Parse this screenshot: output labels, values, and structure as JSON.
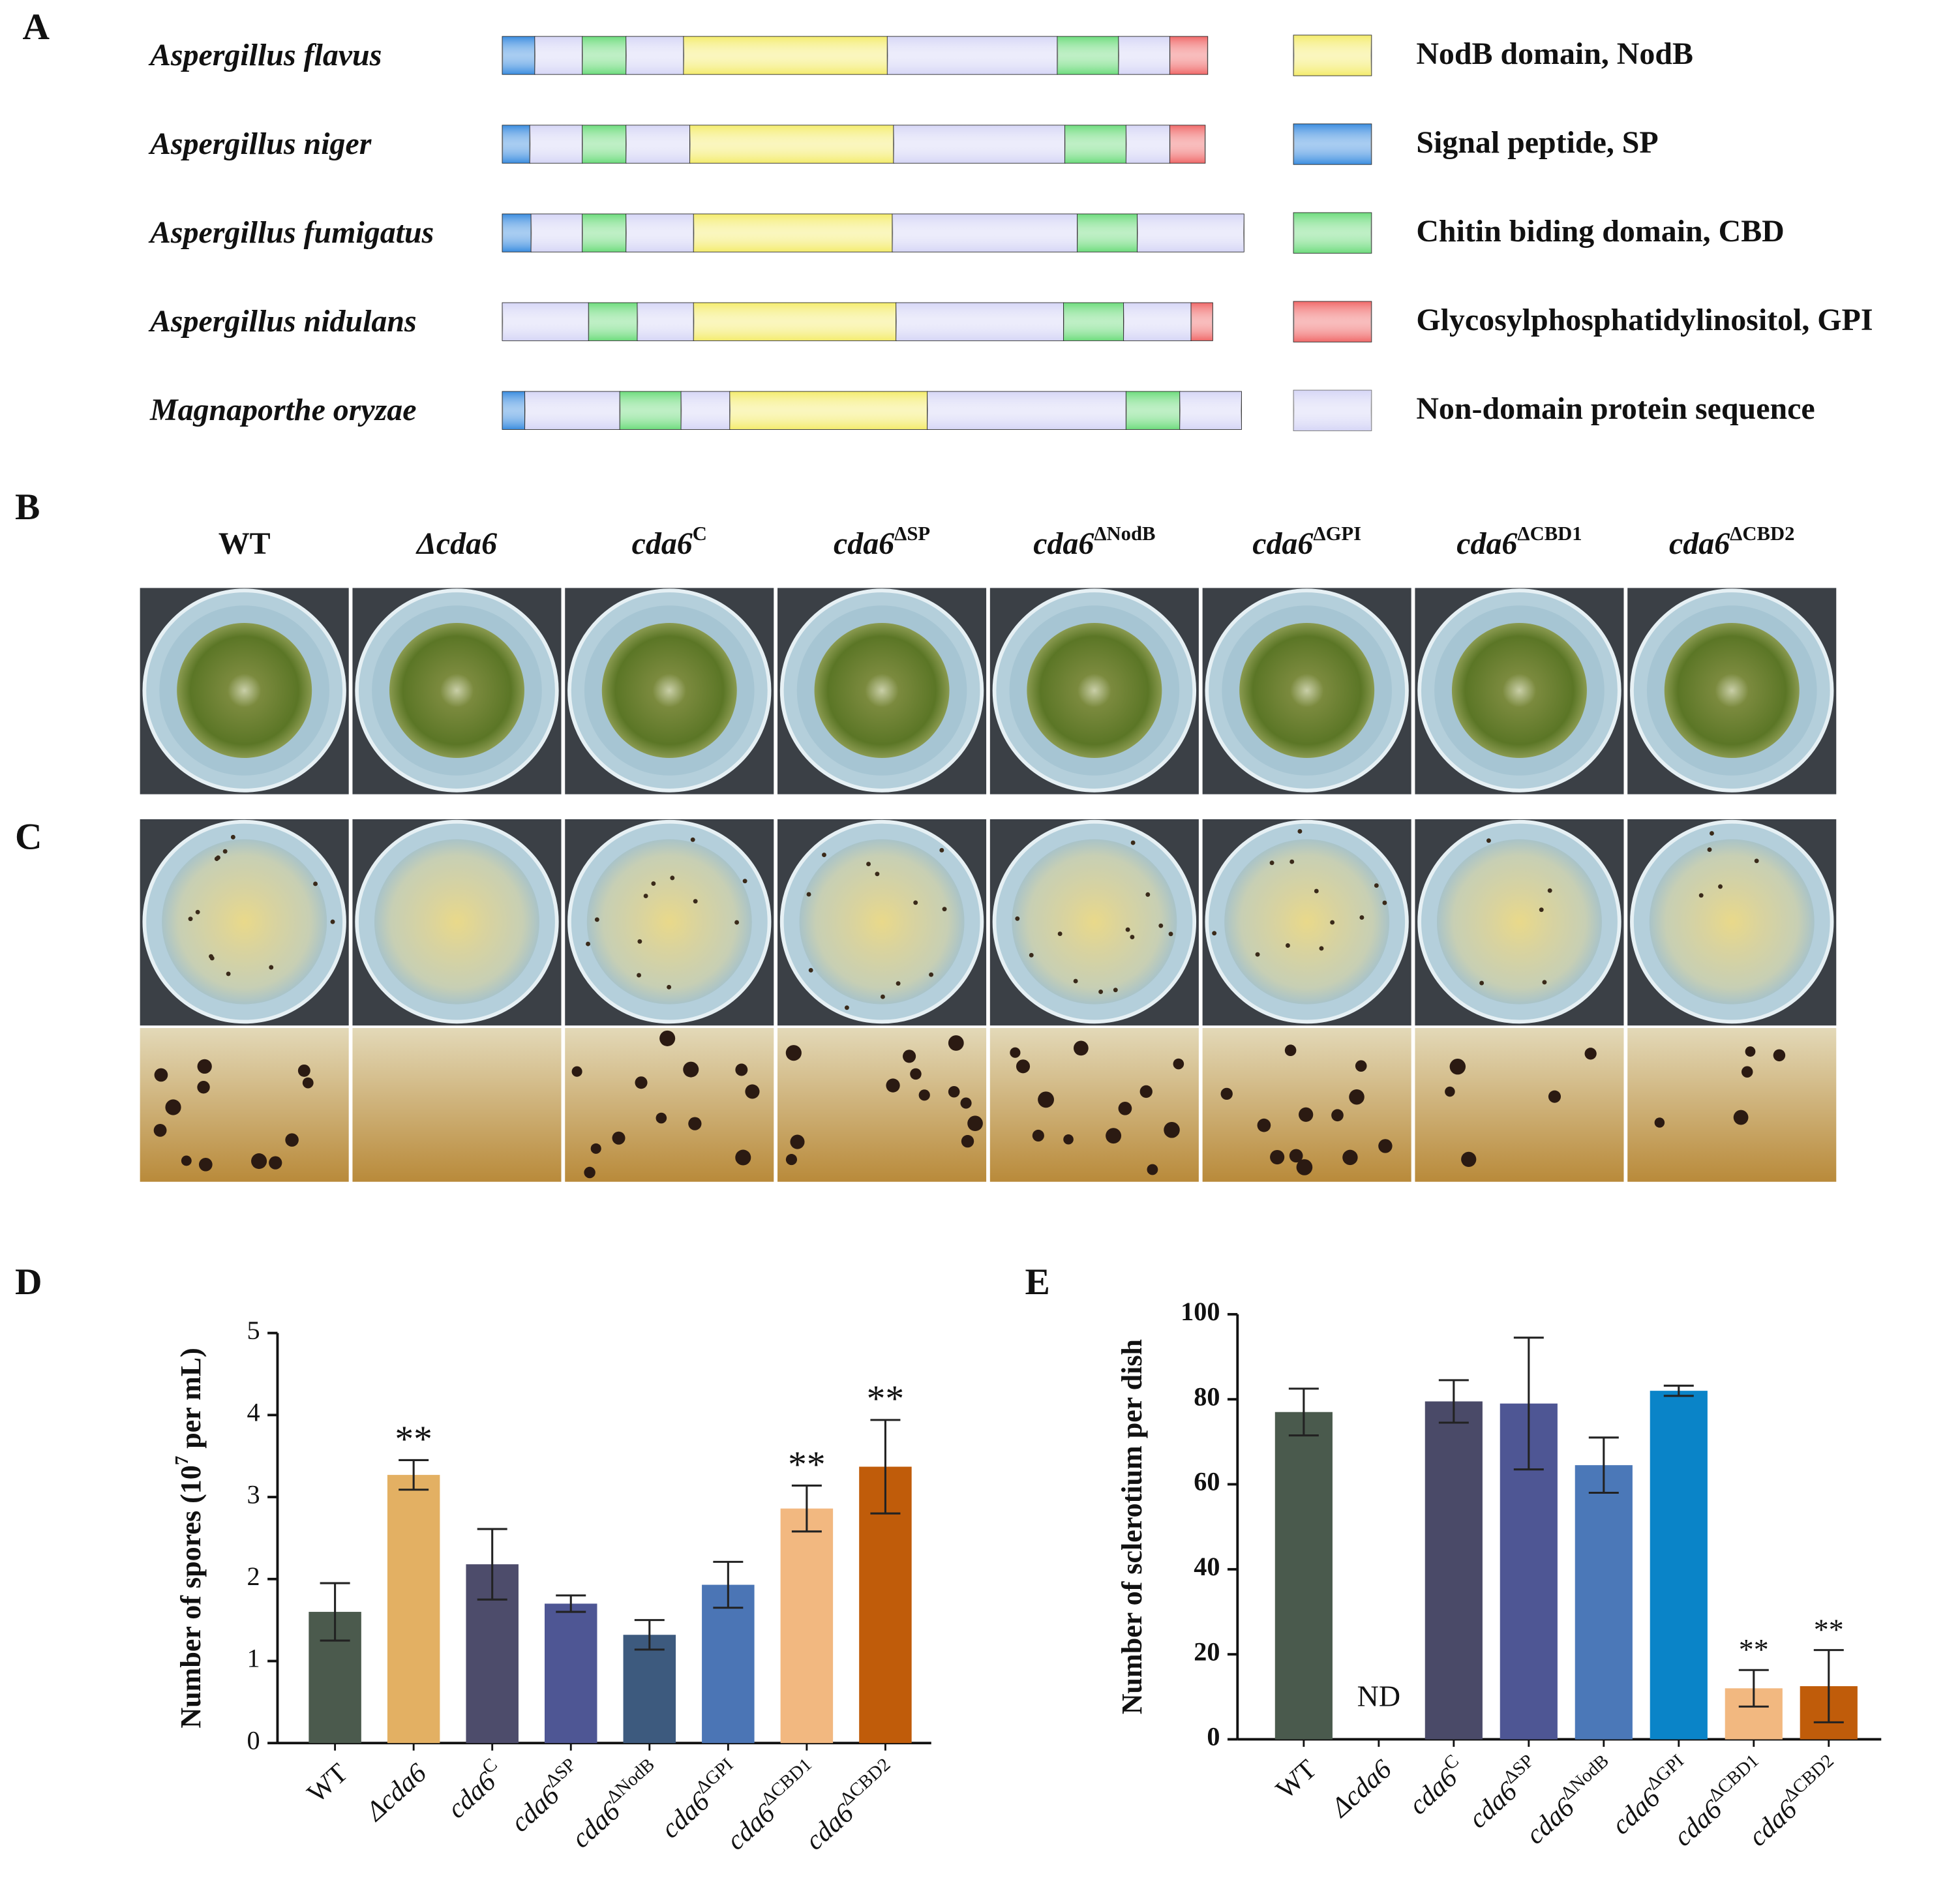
{
  "panel_labels": [
    "A",
    "B",
    "C",
    "D",
    "E"
  ],
  "domain_panel": {
    "legend": [
      {
        "label": "NodB domain, NodB",
        "color": "#f4ec6e"
      },
      {
        "label": "Signal peptide, SP",
        "color": "#3d8ee0"
      },
      {
        "label": "Chitin biding domain, CBD",
        "color": "#6fdc7e"
      },
      {
        "label": "Glycosylphosphatidylinositol, GPI",
        "color": "#f06b6b"
      },
      {
        "label": "Non-domain protein sequence",
        "color": "#d6d6f6"
      }
    ],
    "proteins": [
      {
        "species": "Aspergillus flavus",
        "segments": [
          {
            "domain": 1,
            "start": 0,
            "end": 26
          },
          {
            "domain": 4,
            "start": 26,
            "end": 64
          },
          {
            "domain": 2,
            "start": 64,
            "end": 99
          },
          {
            "domain": 4,
            "start": 99,
            "end": 145
          },
          {
            "domain": 0,
            "start": 145,
            "end": 308
          },
          {
            "domain": 4,
            "start": 308,
            "end": 444
          },
          {
            "domain": 2,
            "start": 444,
            "end": 493
          },
          {
            "domain": 4,
            "start": 493,
            "end": 534
          },
          {
            "domain": 3,
            "start": 534,
            "end": 564
          }
        ]
      },
      {
        "species": "Aspergillus niger",
        "segments": [
          {
            "domain": 1,
            "start": 0,
            "end": 22
          },
          {
            "domain": 4,
            "start": 22,
            "end": 64
          },
          {
            "domain": 2,
            "start": 64,
            "end": 99
          },
          {
            "domain": 4,
            "start": 99,
            "end": 150
          },
          {
            "domain": 0,
            "start": 150,
            "end": 313
          },
          {
            "domain": 4,
            "start": 313,
            "end": 450
          },
          {
            "domain": 2,
            "start": 450,
            "end": 499
          },
          {
            "domain": 4,
            "start": 499,
            "end": 534
          },
          {
            "domain": 3,
            "start": 534,
            "end": 562
          }
        ]
      },
      {
        "species": "Aspergillus fumigatus",
        "segments": [
          {
            "domain": 1,
            "start": 0,
            "end": 23
          },
          {
            "domain": 4,
            "start": 23,
            "end": 64
          },
          {
            "domain": 2,
            "start": 64,
            "end": 99
          },
          {
            "domain": 4,
            "start": 99,
            "end": 153
          },
          {
            "domain": 0,
            "start": 153,
            "end": 312
          },
          {
            "domain": 4,
            "start": 312,
            "end": 460
          },
          {
            "domain": 2,
            "start": 460,
            "end": 508
          },
          {
            "domain": 4,
            "start": 508,
            "end": 593
          }
        ]
      },
      {
        "species": "Aspergillus nidulans",
        "segments": [
          {
            "domain": 4,
            "start": 0,
            "end": 69
          },
          {
            "domain": 2,
            "start": 69,
            "end": 108
          },
          {
            "domain": 4,
            "start": 108,
            "end": 153
          },
          {
            "domain": 0,
            "start": 153,
            "end": 315
          },
          {
            "domain": 4,
            "start": 315,
            "end": 449
          },
          {
            "domain": 2,
            "start": 449,
            "end": 497
          },
          {
            "domain": 4,
            "start": 497,
            "end": 551
          },
          {
            "domain": 3,
            "start": 551,
            "end": 568
          }
        ]
      },
      {
        "species": "Magnaporthe oryzae",
        "segments": [
          {
            "domain": 1,
            "start": 0,
            "end": 18
          },
          {
            "domain": 4,
            "start": 18,
            "end": 94
          },
          {
            "domain": 2,
            "start": 94,
            "end": 143
          },
          {
            "domain": 4,
            "start": 143,
            "end": 182
          },
          {
            "domain": 0,
            "start": 182,
            "end": 340
          },
          {
            "domain": 4,
            "start": 340,
            "end": 499
          },
          {
            "domain": 2,
            "start": 499,
            "end": 542
          },
          {
            "domain": 4,
            "start": 542,
            "end": 591
          }
        ]
      }
    ]
  },
  "photo_panel": {
    "columns": [
      {
        "base": "WT",
        "italic": false
      },
      {
        "base": "Δcda6",
        "italic": true
      },
      {
        "base": "cda6",
        "sup": "C",
        "italic": true
      },
      {
        "base": "cda6",
        "sup": "ΔSP",
        "italic": true
      },
      {
        "base": "cda6",
        "sup": "ΔNodB",
        "italic": true
      },
      {
        "base": "cda6",
        "sup": "ΔGPI",
        "italic": true
      },
      {
        "base": "cda6",
        "sup": "ΔCBD1",
        "italic": true
      },
      {
        "base": "cda6",
        "sup": "ΔCBD2",
        "italic": true
      }
    ]
  },
  "chart_data": [
    {
      "type": "bar",
      "ylabel": {
        "before": "Number of  spores (10",
        "sup": "7",
        "after": " per mL)"
      },
      "categories": [
        {
          "base": "WT",
          "italic": false
        },
        {
          "base": "Δcda6",
          "italic": true
        },
        {
          "base": "cda6",
          "sup": "C",
          "italic": true
        },
        {
          "base": "cda6",
          "sup": "ΔSP",
          "italic": true
        },
        {
          "base": "cda6",
          "sup": "ΔNodB",
          "italic": true
        },
        {
          "base": "cda6",
          "sup": "ΔGPI",
          "italic": true
        },
        {
          "base": "cda6",
          "sup": "ΔCBD1",
          "italic": true
        },
        {
          "base": "cda6",
          "sup": "ΔCBD2",
          "italic": true
        }
      ],
      "values": [
        1.6,
        3.27,
        2.18,
        1.7,
        1.32,
        1.93,
        2.86,
        3.37
      ],
      "errors": [
        0.35,
        0.18,
        0.43,
        0.1,
        0.18,
        0.28,
        0.28,
        0.57
      ],
      "colors": [
        "#4b5a4d",
        "#e3b063",
        "#4d4c6b",
        "#4e5694",
        "#3d5a7e",
        "#4b75b5",
        "#f2b880",
        "#c05c0a"
      ],
      "significance": [
        {
          "index": 1,
          "label": "**"
        },
        {
          "index": 6,
          "label": "**"
        },
        {
          "index": 7,
          "label": "**"
        }
      ],
      "ylim": [
        0,
        5
      ],
      "yticks": [
        0,
        1,
        2,
        3,
        4,
        5
      ]
    },
    {
      "type": "bar",
      "ylabel": {
        "before": "Number of  sclerotium  per dish"
      },
      "categories": [
        {
          "base": "WT",
          "italic": false
        },
        {
          "base": "Δcda6",
          "italic": true
        },
        {
          "base": "cda6",
          "sup": "C",
          "italic": true
        },
        {
          "base": "cda6",
          "sup": "ΔSP",
          "italic": true
        },
        {
          "base": "cda6",
          "sup": "ΔNodB",
          "italic": true
        },
        {
          "base": "cda6",
          "sup": "ΔGPI",
          "italic": true
        },
        {
          "base": "cda6",
          "sup": "ΔCBD1",
          "italic": true
        },
        {
          "base": "cda6",
          "sup": "ΔCBD2",
          "italic": true
        }
      ],
      "values": [
        77,
        null,
        79.5,
        79,
        64.5,
        82,
        12,
        12.5
      ],
      "value_labels": [
        null,
        "ND",
        null,
        null,
        null,
        null,
        null,
        null
      ],
      "errors": [
        5.5,
        null,
        5,
        15.5,
        6.5,
        1.2,
        4.3,
        8.5
      ],
      "colors": [
        "#4a5a4d",
        null,
        "#4a4a68",
        "#4e5694",
        "#4b78b8",
        "#0a84c8",
        "#f2b880",
        "#c05c0a"
      ],
      "significance": [
        {
          "index": 6,
          "label": "**"
        },
        {
          "index": 7,
          "label": "**"
        }
      ],
      "ylim": [
        0,
        100
      ],
      "yticks": [
        0,
        20,
        40,
        60,
        80,
        100
      ]
    }
  ]
}
